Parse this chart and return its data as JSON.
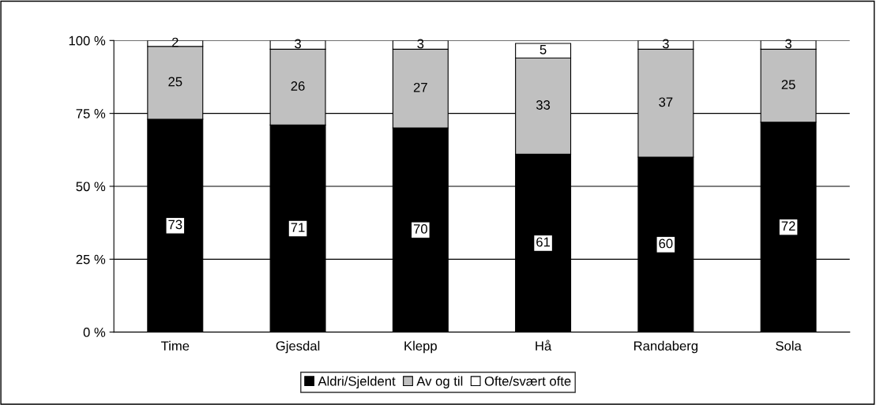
{
  "chart_data": {
    "type": "bar",
    "stacked": true,
    "categories": [
      "Time",
      "Gjesdal",
      "Klepp",
      "Hå",
      "Randaberg",
      "Sola"
    ],
    "series": [
      {
        "name": "Aldri/Sjeldent",
        "color": "#000000",
        "values": [
          73,
          71,
          70,
          61,
          60,
          72
        ]
      },
      {
        "name": "Av og til",
        "color": "#c0c0c0",
        "values": [
          25,
          26,
          27,
          33,
          37,
          25
        ]
      },
      {
        "name": "Ofte/svært ofte",
        "color": "#ffffff",
        "values": [
          2,
          3,
          3,
          5,
          3,
          3
        ]
      }
    ],
    "ylim": [
      0,
      100
    ],
    "yticks": [
      {
        "value": 0,
        "label": "0 %"
      },
      {
        "value": 25,
        "label": "25 %"
      },
      {
        "value": 50,
        "label": "50 %"
      },
      {
        "value": 75,
        "label": "75 %"
      },
      {
        "value": 100,
        "label": "100 %"
      }
    ],
    "grid": "y",
    "legend": "bottom",
    "data_labels": true
  }
}
